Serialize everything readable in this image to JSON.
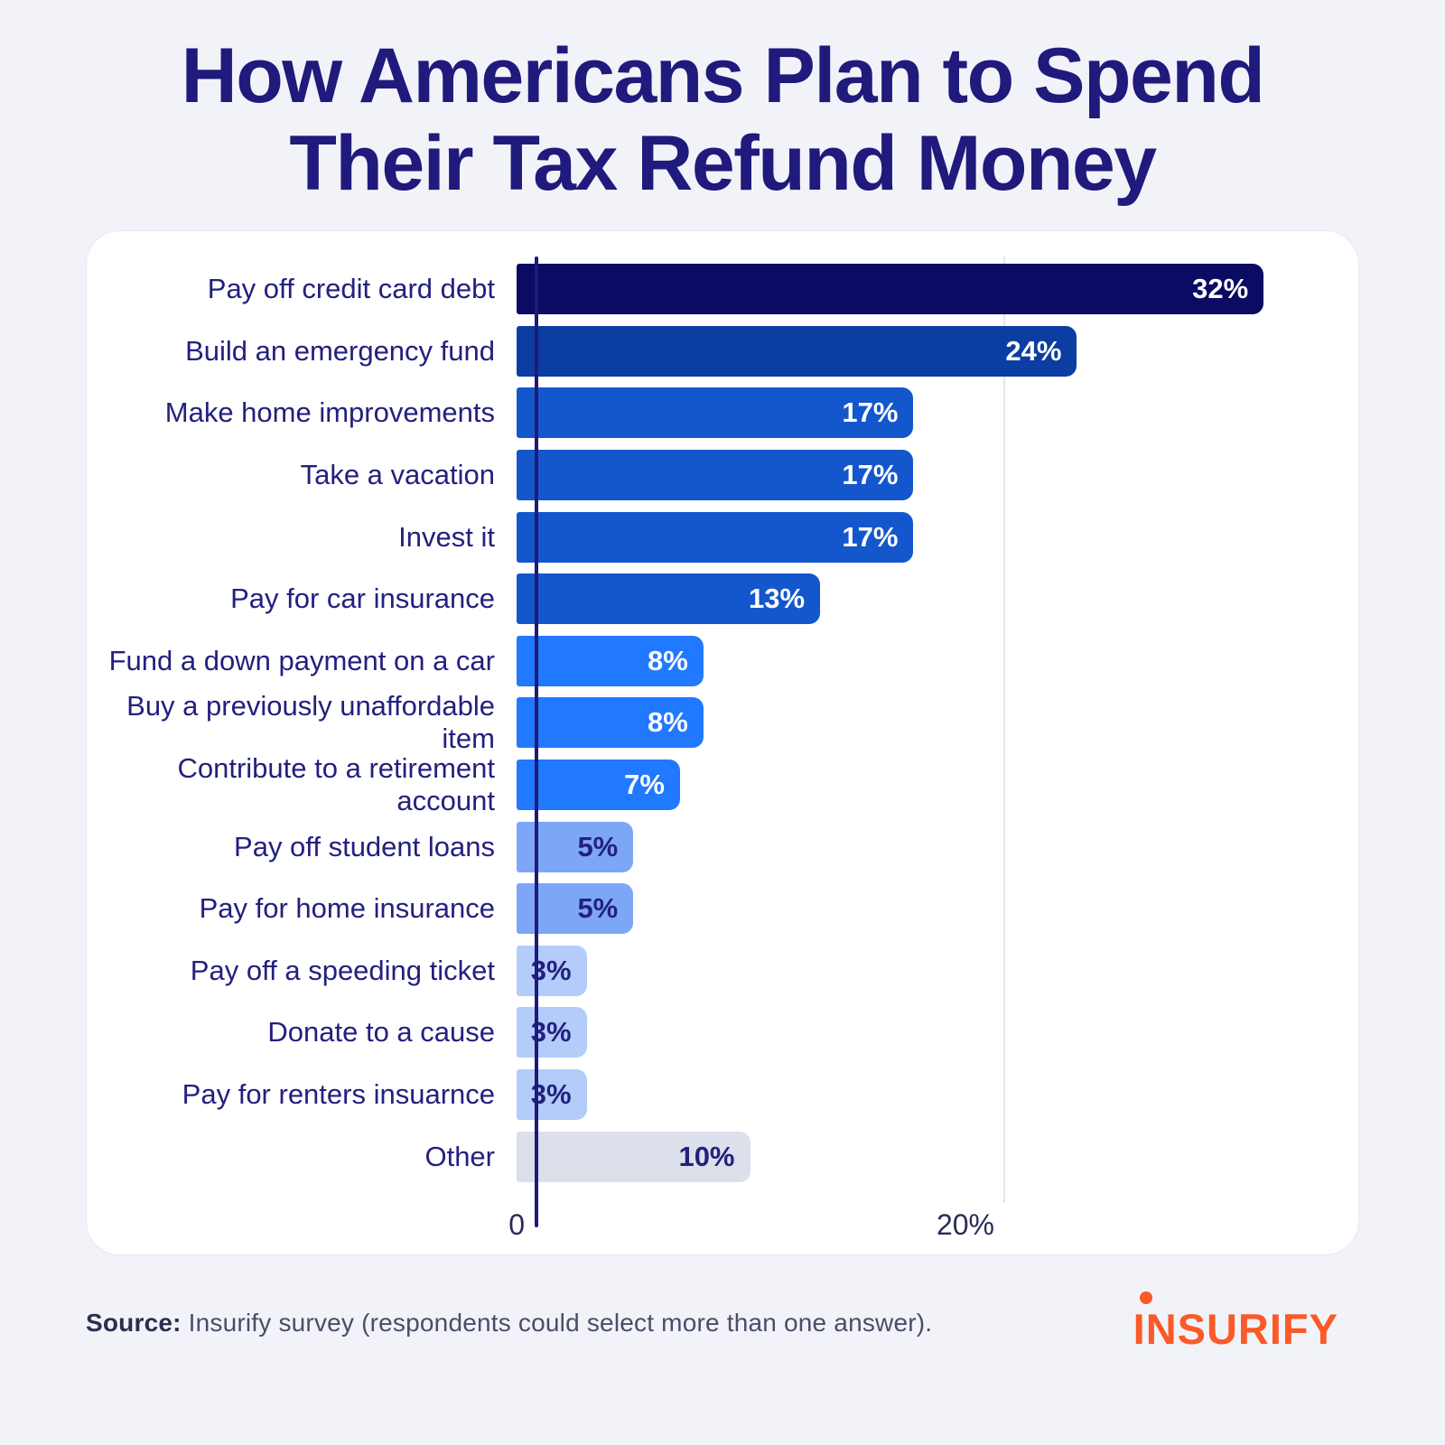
{
  "title": {
    "line1": "How Americans Plan to Spend",
    "line2": "Their Tax Refund Money"
  },
  "chart_data": {
    "type": "bar",
    "orientation": "horizontal",
    "title": "How Americans Plan to Spend Their Tax Refund Money",
    "categories": [
      "Pay off credit card debt",
      "Build an emergency fund",
      "Make home improvements",
      "Take a vacation",
      "Invest it",
      "Pay for car insurance",
      "Fund a down payment on a car",
      "Buy a previously unaffordable item",
      "Contribute to a retirement account",
      "Pay off student loans",
      "Pay for home insurance",
      "Pay off a speeding ticket",
      "Donate to a cause",
      "Pay for renters insuarnce",
      "Other"
    ],
    "values": [
      32,
      24,
      17,
      17,
      17,
      13,
      8,
      8,
      7,
      5,
      5,
      3,
      3,
      3,
      10
    ],
    "value_labels": [
      "32%",
      "24%",
      "17%",
      "17%",
      "17%",
      "13%",
      "8%",
      "8%",
      "7%",
      "5%",
      "5%",
      "3%",
      "3%",
      "3%",
      "10%"
    ],
    "bar_colors": [
      "#0b0b63",
      "#0b3da2",
      "#1457cd",
      "#1457cd",
      "#1457cd",
      "#1457cd",
      "#2079ff",
      "#2079ff",
      "#2079ff",
      "#7da6f7",
      "#7da6f7",
      "#b3ccfa",
      "#b3ccfa",
      "#b3ccfa",
      "#dbe0ea"
    ],
    "value_text_colors": [
      "#ffffff",
      "#ffffff",
      "#ffffff",
      "#ffffff",
      "#ffffff",
      "#ffffff",
      "#ffffff",
      "#ffffff",
      "#ffffff",
      "#23207f",
      "#23207f",
      "#23207f",
      "#23207f",
      "#23207f",
      "#23207f"
    ],
    "xlabel": "",
    "ylabel": "",
    "xlim": [
      0,
      34.8
    ],
    "x_ticks": [
      "0",
      "20%"
    ],
    "gridline_at_percent": 20,
    "legend": "none",
    "grid": "single vertical gridline at 20%"
  },
  "source": {
    "label": "Source:",
    "text": " Insurify survey (respondents could select more than one answer)."
  },
  "logo": {
    "text": "INSURIFY",
    "color": "#fa5a28"
  },
  "colors": {
    "background": "#f2f3f8",
    "card": "#ffffff",
    "title": "#201a7c",
    "axis": "#1e1a78",
    "gridline": "#e3e6ef"
  }
}
